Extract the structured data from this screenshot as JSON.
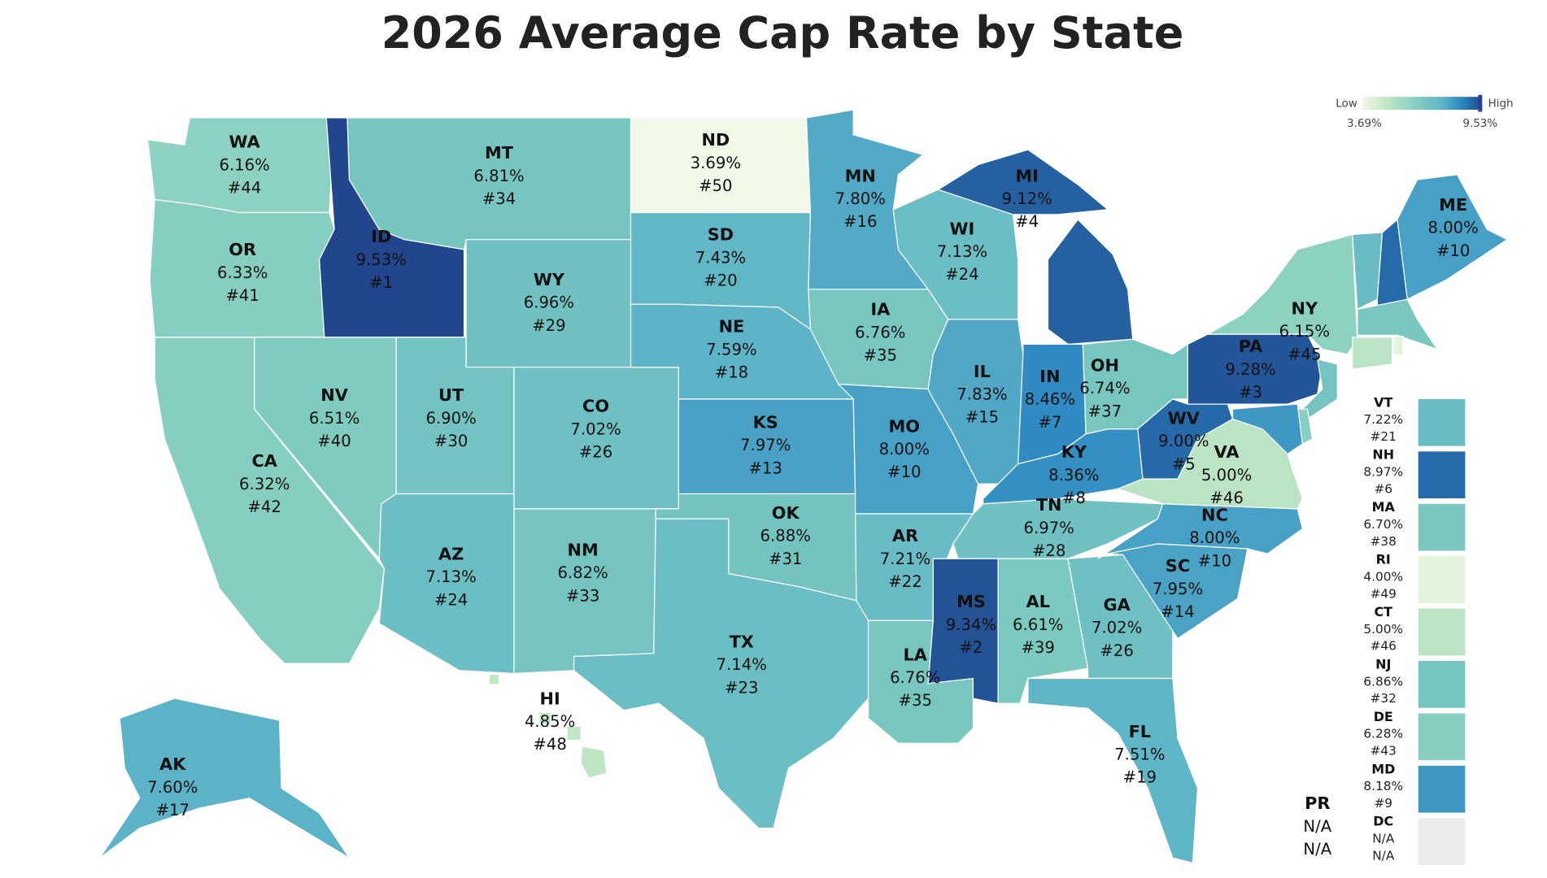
{
  "chart_data": {
    "type": "choropleth",
    "title": "2026 Average Cap Rate by State",
    "legend": {
      "low_label": "Low",
      "high_label": "High",
      "min": {
        "value": 3.69,
        "label": "3.69%"
      },
      "max": {
        "value": 9.53,
        "label": "9.53%"
      }
    },
    "colors": [
      "#f0f9e8",
      "#c8e9c4",
      "#9fdac4",
      "#7cc9bf",
      "#5db4c8",
      "#2a86c0",
      "#21468b"
    ],
    "na_color": "#ececec",
    "states": [
      {
        "code": "WA",
        "value": 6.16,
        "value_label": "6.16%",
        "rank": "#44"
      },
      {
        "code": "OR",
        "value": 6.33,
        "value_label": "6.33%",
        "rank": "#41"
      },
      {
        "code": "CA",
        "value": 6.32,
        "value_label": "6.32%",
        "rank": "#42"
      },
      {
        "code": "ID",
        "value": 9.53,
        "value_label": "9.53%",
        "rank": "#1"
      },
      {
        "code": "MT",
        "value": 6.81,
        "value_label": "6.81%",
        "rank": "#34"
      },
      {
        "code": "WY",
        "value": 6.96,
        "value_label": "6.96%",
        "rank": "#29"
      },
      {
        "code": "NV",
        "value": 6.51,
        "value_label": "6.51%",
        "rank": "#40"
      },
      {
        "code": "UT",
        "value": 6.9,
        "value_label": "6.90%",
        "rank": "#30"
      },
      {
        "code": "CO",
        "value": 7.02,
        "value_label": "7.02%",
        "rank": "#26"
      },
      {
        "code": "AZ",
        "value": 7.13,
        "value_label": "7.13%",
        "rank": "#24"
      },
      {
        "code": "NM",
        "value": 6.82,
        "value_label": "6.82%",
        "rank": "#33"
      },
      {
        "code": "ND",
        "value": 3.69,
        "value_label": "3.69%",
        "rank": "#50"
      },
      {
        "code": "SD",
        "value": 7.43,
        "value_label": "7.43%",
        "rank": "#20"
      },
      {
        "code": "NE",
        "value": 7.59,
        "value_label": "7.59%",
        "rank": "#18"
      },
      {
        "code": "KS",
        "value": 7.97,
        "value_label": "7.97%",
        "rank": "#13"
      },
      {
        "code": "OK",
        "value": 6.88,
        "value_label": "6.88%",
        "rank": "#31"
      },
      {
        "code": "TX",
        "value": 7.14,
        "value_label": "7.14%",
        "rank": "#23"
      },
      {
        "code": "MN",
        "value": 7.8,
        "value_label": "7.80%",
        "rank": "#16"
      },
      {
        "code": "IA",
        "value": 6.76,
        "value_label": "6.76%",
        "rank": "#35"
      },
      {
        "code": "MO",
        "value": 8.0,
        "value_label": "8.00%",
        "rank": "#10"
      },
      {
        "code": "AR",
        "value": 7.21,
        "value_label": "7.21%",
        "rank": "#22"
      },
      {
        "code": "LA",
        "value": 6.76,
        "value_label": "6.76%",
        "rank": "#35"
      },
      {
        "code": "WI",
        "value": 7.13,
        "value_label": "7.13%",
        "rank": "#24"
      },
      {
        "code": "IL",
        "value": 7.83,
        "value_label": "7.83%",
        "rank": "#15"
      },
      {
        "code": "MI",
        "value": 9.12,
        "value_label": "9.12%",
        "rank": "#4"
      },
      {
        "code": "IN",
        "value": 8.46,
        "value_label": "8.46%",
        "rank": "#7"
      },
      {
        "code": "OH",
        "value": 6.74,
        "value_label": "6.74%",
        "rank": "#37"
      },
      {
        "code": "KY",
        "value": 8.36,
        "value_label": "8.36%",
        "rank": "#8"
      },
      {
        "code": "TN",
        "value": 6.97,
        "value_label": "6.97%",
        "rank": "#28"
      },
      {
        "code": "MS",
        "value": 9.34,
        "value_label": "9.34%",
        "rank": "#2"
      },
      {
        "code": "AL",
        "value": 6.61,
        "value_label": "6.61%",
        "rank": "#39"
      },
      {
        "code": "GA",
        "value": 7.02,
        "value_label": "7.02%",
        "rank": "#26"
      },
      {
        "code": "FL",
        "value": 7.51,
        "value_label": "7.51%",
        "rank": "#19"
      },
      {
        "code": "SC",
        "value": 7.95,
        "value_label": "7.95%",
        "rank": "#14"
      },
      {
        "code": "NC",
        "value": 8.0,
        "value_label": "8.00%",
        "rank": "#10"
      },
      {
        "code": "VA",
        "value": 5.0,
        "value_label": "5.00%",
        "rank": "#46"
      },
      {
        "code": "WV",
        "value": 9.0,
        "value_label": "9.00%",
        "rank": "#5"
      },
      {
        "code": "PA",
        "value": 9.28,
        "value_label": "9.28%",
        "rank": "#3"
      },
      {
        "code": "NY",
        "value": 6.15,
        "value_label": "6.15%",
        "rank": "#45"
      },
      {
        "code": "ME",
        "value": 8.0,
        "value_label": "8.00%",
        "rank": "#10"
      },
      {
        "code": "AK",
        "value": 7.6,
        "value_label": "7.60%",
        "rank": "#17"
      },
      {
        "code": "HI",
        "value": 4.85,
        "value_label": "4.85%",
        "rank": "#48"
      },
      {
        "code": "PR",
        "value": null,
        "value_label": "N/A",
        "rank": "N/A"
      },
      {
        "code": "VT",
        "value": 7.22,
        "value_label": "7.22%",
        "rank": "#21",
        "callout": true
      },
      {
        "code": "NH",
        "value": 8.97,
        "value_label": "8.97%",
        "rank": "#6",
        "callout": true
      },
      {
        "code": "MA",
        "value": 6.7,
        "value_label": "6.70%",
        "rank": "#38",
        "callout": true
      },
      {
        "code": "RI",
        "value": 4.0,
        "value_label": "4.00%",
        "rank": "#49",
        "callout": true
      },
      {
        "code": "CT",
        "value": 5.0,
        "value_label": "5.00%",
        "rank": "#46",
        "callout": true
      },
      {
        "code": "NJ",
        "value": 6.86,
        "value_label": "6.86%",
        "rank": "#32",
        "callout": true
      },
      {
        "code": "DE",
        "value": 6.28,
        "value_label": "6.28%",
        "rank": "#43",
        "callout": true
      },
      {
        "code": "MD",
        "value": 8.18,
        "value_label": "8.18%",
        "rank": "#9",
        "callout": true
      },
      {
        "code": "DC",
        "value": null,
        "value_label": "N/A",
        "rank": "N/A",
        "callout": true
      }
    ]
  }
}
